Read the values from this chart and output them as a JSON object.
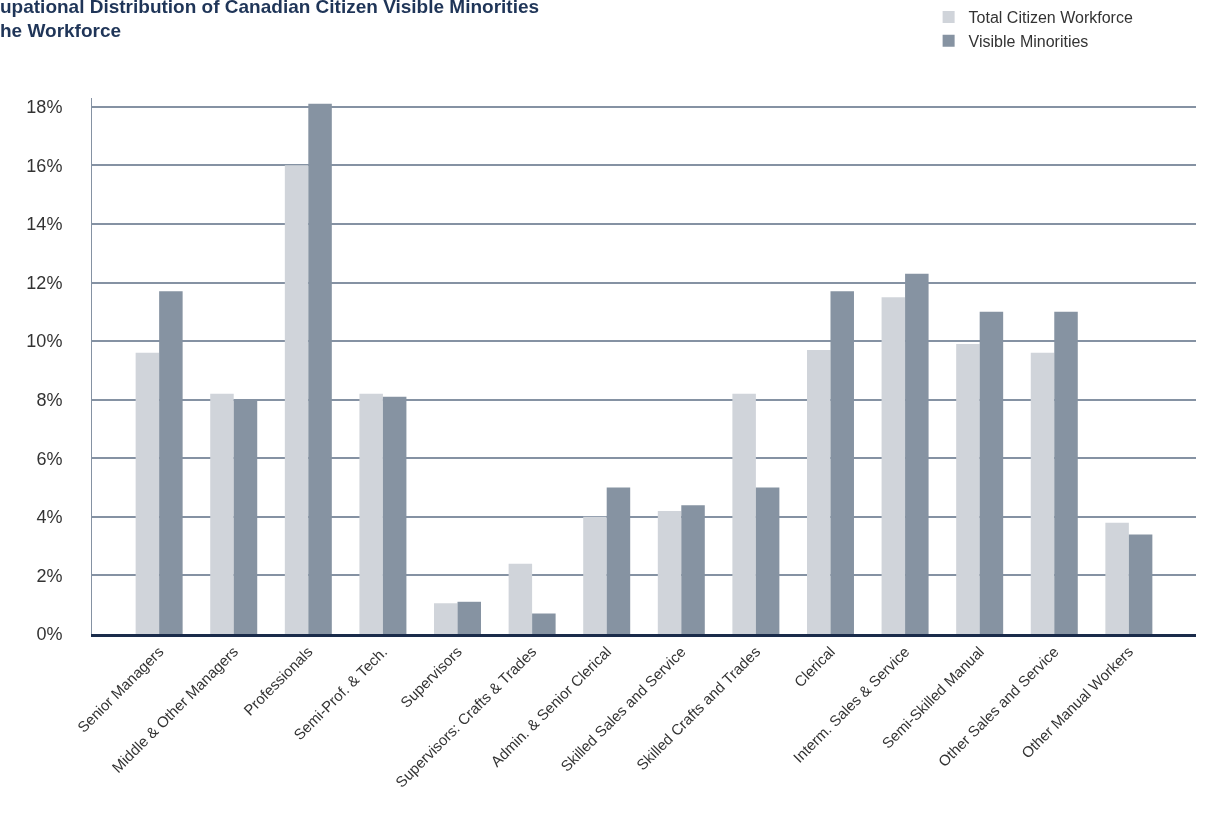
{
  "chart_data": {
    "type": "bar",
    "title": "upational Distribution of Canadian Citizen Visible Minorities\nhe Workforce",
    "categories": [
      "Senior Managers",
      "Middle & Other Managers",
      "Professionals",
      "Semi-Prof. & Tech.",
      "Supervisors",
      "Supervisors: Crafts & Trades",
      "Admin. & Senior Clerical",
      "Skilled Sales and Service",
      "Skilled Crafts and Trades",
      "Clerical",
      "Interm. Sales & Service",
      "Semi-Skilled Manual",
      "Other Sales and Service",
      "Other Manual Workers"
    ],
    "series": [
      {
        "name": "Total Citizen Workforce",
        "color": "#d0d4da",
        "values": [
          9.6,
          8.2,
          16.0,
          8.2,
          1.05,
          2.4,
          4.0,
          4.2,
          8.2,
          9.7,
          11.5,
          9.9,
          9.6,
          3.8
        ]
      },
      {
        "name": "Visible Minorities",
        "color": "#8693a2",
        "values": [
          11.7,
          8.0,
          18.1,
          8.1,
          1.1,
          0.7,
          5.0,
          4.4,
          5.0,
          11.7,
          12.3,
          11.0,
          11.0,
          3.4
        ]
      }
    ],
    "ylim": [
      0,
      18.3
    ],
    "yticks": [
      {
        "value": 0,
        "label": "0%"
      },
      {
        "value": 2,
        "label": "2%"
      },
      {
        "value": 4,
        "label": "4%"
      },
      {
        "value": 6,
        "label": "6%"
      },
      {
        "value": 8,
        "label": "8%"
      },
      {
        "value": 10,
        "label": "10%"
      },
      {
        "value": 12,
        "label": "12%"
      },
      {
        "value": 14,
        "label": "14%"
      },
      {
        "value": 16,
        "label": "16%"
      },
      {
        "value": 18,
        "label": "18%"
      }
    ],
    "grid": "y",
    "legend": "top right"
  }
}
